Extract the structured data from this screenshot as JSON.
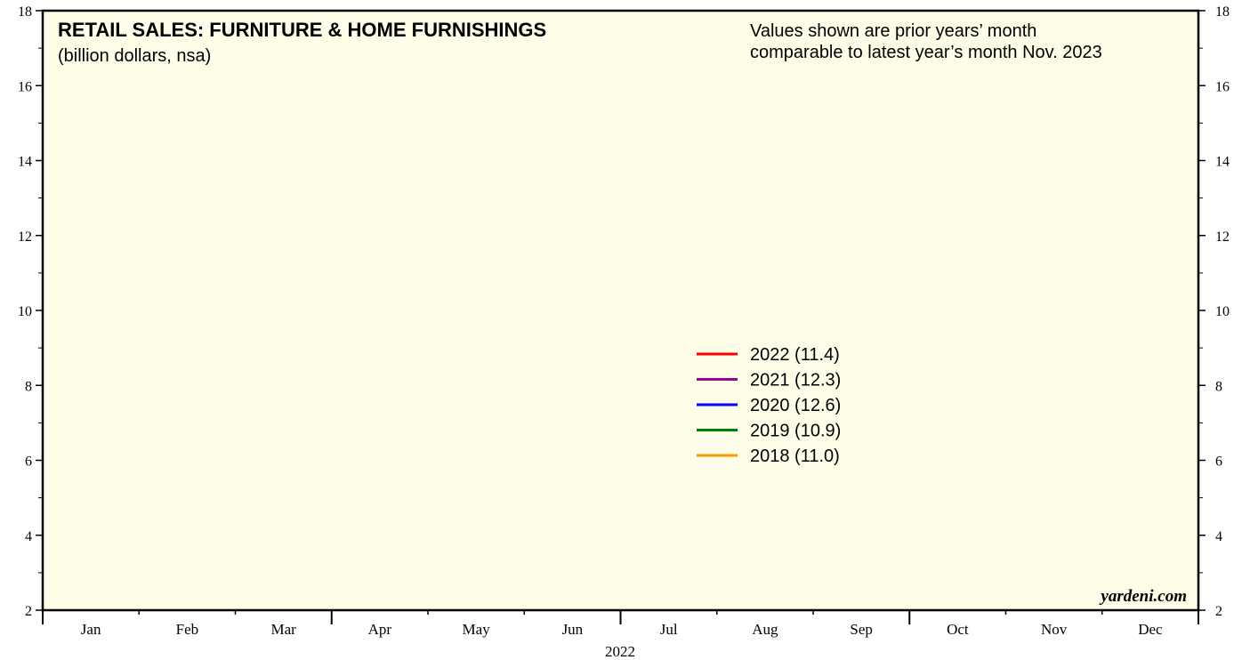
{
  "chart_data": {
    "type": "line",
    "title": "RETAIL SALES: FURNITURE & HOME FURNISHINGS",
    "subtitle": "(billion dollars, nsa)",
    "annotation": [
      "Values shown are prior years’ month",
      "comparable to latest year’s month Nov. 2023"
    ],
    "source": "yardeni.com",
    "xlabel": "2022",
    "categories": [
      "Jan",
      "Feb",
      "Mar",
      "Apr",
      "May",
      "Jun",
      "Jul",
      "Aug",
      "Sep",
      "Oct",
      "Nov",
      "Dec"
    ],
    "series": [
      {
        "name": "2022 (11.4)",
        "color": "#ff0000"
      },
      {
        "name": "2021 (12.3)",
        "color": "#990099"
      },
      {
        "name": "2020 (12.6)",
        "color": "#0000ff"
      },
      {
        "name": "2019 (10.9)",
        "color": "#008000"
      },
      {
        "name": "2018 (11.0)",
        "color": "#ff9900"
      }
    ],
    "ylim": [
      2,
      18
    ],
    "yticks": [
      2,
      4,
      6,
      8,
      10,
      12,
      14,
      16,
      18
    ],
    "y2lim": [
      2,
      18
    ],
    "y2ticks": [
      2,
      4,
      6,
      8,
      10,
      12,
      14,
      16,
      18
    ],
    "background": "#fefee8"
  }
}
